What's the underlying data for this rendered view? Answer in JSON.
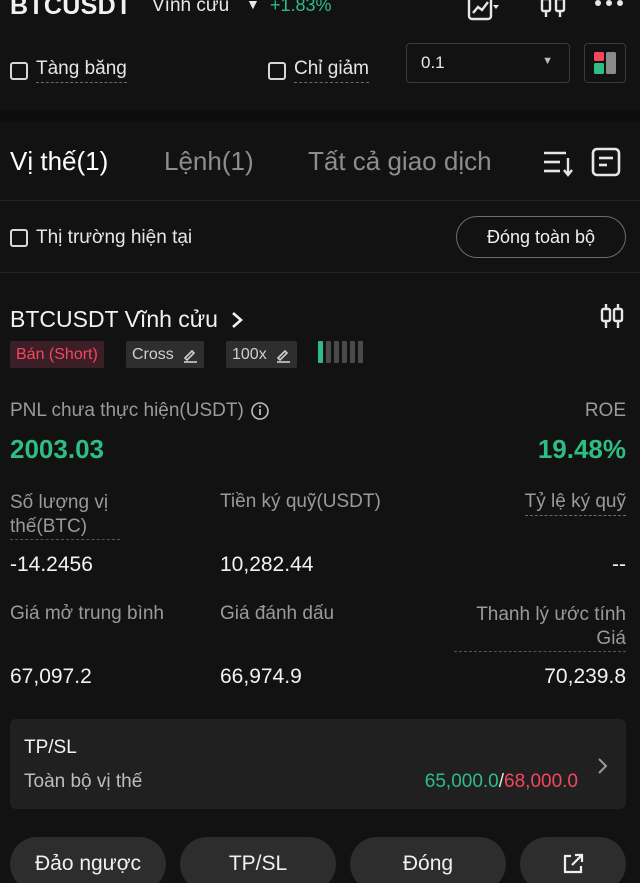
{
  "header": {
    "symbol": "BTCUSDT",
    "contract_type": "Vĩnh cửu",
    "caret": "▼",
    "change": "+1.83%",
    "icons": [
      "chart-icon",
      "candlestick-icon",
      "more-icon"
    ]
  },
  "filters": {
    "hide_frozen_label": "Tàng băng",
    "reduce_only_label": "Chỉ giảm",
    "quantity_step_value": "0.1"
  },
  "tabs": [
    {
      "label": "Vị thế(1)",
      "active": true
    },
    {
      "label": "Lệnh(1)",
      "active": false
    },
    {
      "label": "Tất cả giao dịch",
      "active": false
    }
  ],
  "toolbar": {
    "current_market_label": "Thị trường hiện tại",
    "close_all_label": "Đóng toàn bộ"
  },
  "position": {
    "pair_title": "BTCUSDT Vĩnh cửu",
    "side_badge": "Bán (Short)",
    "margin_mode": "Cross",
    "leverage": "100x",
    "adl_level": 1,
    "unrealized_pnl_label": "PNL chưa thực hiện(USDT)",
    "unrealized_pnl": "2003.03",
    "roe_label": "ROE",
    "roe": "19.48%",
    "size_label_line1": "Số lượng vị",
    "size_label_line2": "thế(BTC)",
    "size": "-14.2456",
    "margin_label": "Tiền ký quỹ(USDT)",
    "margin": "10,282.44",
    "margin_ratio_label": "Tỷ lệ ký quỹ",
    "margin_ratio": "--",
    "entry_price_label": "Giá mở trung bình",
    "entry_price": "67,097.2",
    "mark_price_label": "Giá đánh dấu",
    "mark_price": "66,974.9",
    "liq_price_label_line1": "Thanh lý ước tính",
    "liq_price_label_line2": "Giá",
    "liq_price": "70,239.8"
  },
  "tpsl": {
    "title": "TP/SL",
    "scope_label": "Toàn bộ vị thế",
    "take_profit": "65,000.0",
    "separator": "/",
    "stop_loss": "68,000.0"
  },
  "actions": {
    "reverse_label": "Đảo ngược",
    "tpsl_label": "TP/SL",
    "close_label": "Đóng"
  },
  "colors": {
    "green": "#2ebd85",
    "red": "#f6465d",
    "background": "#121212"
  }
}
